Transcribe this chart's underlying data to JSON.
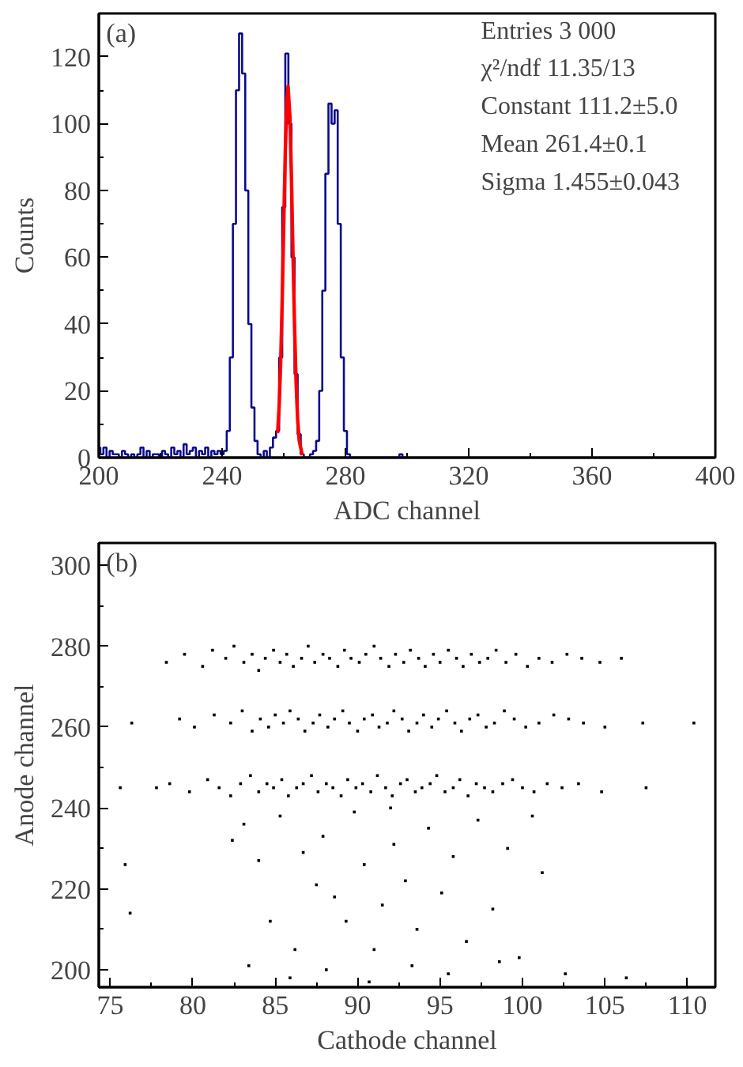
{
  "chart_data": [
    {
      "type": "step",
      "xlabel": "ADC channel",
      "ylabel": "Counts",
      "xlim": [
        200,
        400
      ],
      "ylim": [
        0,
        133
      ],
      "xticks": [
        200,
        240,
        280,
        320,
        360,
        400
      ],
      "yticks": [
        0,
        20,
        40,
        60,
        80,
        100,
        120
      ],
      "grid": false,
      "annotations": [
        "(a)",
        "Entries 3 000",
        "χ²/ndf 11.35/13",
        "Constant 111.2±5.0",
        "Mean 261.4±0.1",
        "Sigma 1.455±0.043"
      ],
      "series": [
        {
          "color": "#0a0a8c",
          "x": [
            200,
            201,
            202,
            203,
            204,
            205,
            206,
            207,
            208,
            209,
            210,
            211,
            212,
            213,
            214,
            215,
            216,
            217,
            218,
            219,
            220,
            221,
            222,
            223,
            224,
            225,
            226,
            227,
            228,
            229,
            230,
            231,
            232,
            233,
            234,
            235,
            236,
            237,
            238,
            239,
            240,
            241,
            242,
            243,
            244,
            245,
            246,
            247,
            248,
            249,
            250,
            251,
            252,
            253,
            254,
            255,
            256,
            257,
            258,
            259,
            260,
            261,
            262,
            263,
            264,
            265,
            266,
            267,
            268,
            269,
            270,
            271,
            272,
            273,
            274,
            275,
            276,
            277,
            278,
            279,
            280,
            281,
            282,
            283,
            284,
            285,
            286,
            287,
            288,
            289,
            290,
            291,
            292,
            293,
            294,
            295,
            296,
            297,
            298,
            299,
            300
          ],
          "values": [
            3,
            1,
            3,
            0,
            2,
            1,
            1,
            0,
            2,
            1,
            0,
            1,
            0,
            1,
            3,
            0,
            2,
            0,
            1,
            1,
            0,
            2,
            1,
            0,
            3,
            1,
            2,
            0,
            4,
            1,
            2,
            3,
            0,
            2,
            1,
            3,
            0,
            2,
            1,
            2,
            1,
            2,
            8,
            30,
            70,
            110,
            127,
            115,
            80,
            40,
            15,
            5,
            1,
            0,
            2,
            0,
            3,
            6,
            8,
            30,
            75,
            121,
            100,
            60,
            25,
            7,
            1,
            0,
            0,
            1,
            2,
            5,
            20,
            50,
            85,
            106,
            100,
            104,
            70,
            30,
            8,
            1,
            0,
            0,
            0,
            0,
            0,
            0,
            0,
            0,
            0,
            0,
            0,
            0,
            0,
            0,
            0,
            0,
            1,
            0,
            0
          ]
        },
        {
          "type": "line",
          "color": "#ff0000",
          "x": [
            258,
            258.5,
            259,
            259.5,
            260,
            260.5,
            261,
            261.4,
            262,
            262.5,
            263,
            263.5,
            264,
            264.5,
            265,
            266
          ],
          "values": [
            7.3,
            15.3,
            28.5,
            47.4,
            70.0,
            91.8,
            107.1,
            111.2,
            102.1,
            83.5,
            60.7,
            39.3,
            22.5,
            11.5,
            5.2,
            0.7
          ]
        }
      ]
    },
    {
      "type": "scatter",
      "xlabel": "Cathode channel",
      "ylabel": "Anode channel",
      "xlim": [
        74.3,
        111.7
      ],
      "ylim": [
        195.7,
        305.5
      ],
      "xticks": [
        75,
        80,
        85,
        90,
        95,
        100,
        105,
        110
      ],
      "yticks": [
        200,
        220,
        240,
        260,
        280,
        300
      ],
      "grid": false,
      "marker": "square",
      "annotations": [
        "(b)"
      ],
      "series": [
        {
          "color": "#000000",
          "x": [
            78.4,
            79.5,
            80.6,
            81.2,
            82.0,
            82.5,
            83.1,
            83.6,
            84.0,
            84.4,
            84.9,
            85.3,
            85.7,
            86.1,
            86.6,
            87.0,
            87.4,
            87.9,
            88.3,
            88.8,
            89.2,
            89.6,
            90.1,
            90.5,
            91.0,
            91.4,
            91.9,
            92.3,
            92.8,
            93.2,
            93.7,
            94.1,
            94.6,
            95.0,
            95.5,
            96.0,
            96.4,
            96.9,
            97.4,
            97.9,
            98.4,
            99.0,
            99.6,
            100.3,
            101.0,
            101.8,
            102.7,
            103.6,
            104.7,
            106.0,
            76.3,
            79.2,
            80.1,
            81.3,
            82.3,
            83.0,
            83.6,
            84.1,
            84.6,
            85.0,
            85.5,
            85.9,
            86.4,
            86.8,
            87.3,
            87.7,
            88.2,
            88.6,
            89.1,
            89.5,
            90.0,
            90.4,
            90.9,
            91.3,
            91.8,
            92.2,
            92.7,
            93.1,
            93.6,
            94.0,
            94.5,
            94.9,
            95.4,
            95.9,
            96.3,
            96.8,
            97.3,
            97.8,
            98.3,
            98.9,
            99.5,
            100.2,
            101.0,
            101.9,
            102.8,
            103.7,
            105.0,
            107.3,
            110.4,
            75.6,
            77.8,
            78.6,
            79.8,
            80.9,
            81.6,
            82.3,
            82.9,
            83.5,
            84.0,
            84.5,
            84.9,
            85.4,
            85.8,
            86.3,
            86.7,
            87.2,
            87.6,
            88.1,
            88.5,
            89.0,
            89.4,
            89.9,
            90.3,
            90.8,
            91.2,
            91.7,
            92.1,
            92.6,
            93.0,
            93.5,
            93.9,
            94.4,
            94.8,
            95.3,
            95.8,
            96.2,
            96.7,
            97.2,
            97.7,
            98.2,
            98.8,
            99.4,
            100.0,
            100.7,
            101.5,
            102.4,
            103.4,
            104.8,
            107.5,
            75.9,
            76.2,
            82.4,
            83.1,
            84.0,
            85.3,
            86.7,
            87.5,
            87.9,
            88.6,
            89.3,
            89.8,
            90.4,
            91.0,
            91.5,
            92.2,
            92.9,
            93.6,
            94.3,
            95.1,
            95.8,
            96.6,
            97.3,
            98.2,
            99.1,
            99.8,
            101.2,
            83.4,
            85.9,
            88.1,
            90.7,
            93.3,
            95.5,
            98.6,
            102.6,
            106.3,
            84.7,
            86.2,
            92.0,
            100.6
          ],
          "values": [
            276,
            278,
            275,
            279,
            277,
            280,
            276,
            278,
            274,
            277,
            279,
            276,
            278,
            275,
            277,
            280,
            276,
            278,
            277,
            275,
            279,
            277,
            276,
            278,
            280,
            277,
            275,
            278,
            276,
            279,
            277,
            275,
            278,
            276,
            279,
            277,
            275,
            278,
            276,
            277,
            279,
            276,
            278,
            275,
            277,
            276,
            278,
            277,
            276,
            277,
            261,
            262,
            260,
            263,
            261,
            264,
            259,
            262,
            260,
            263,
            261,
            264,
            262,
            259,
            261,
            263,
            260,
            262,
            264,
            261,
            259,
            262,
            263,
            260,
            261,
            264,
            262,
            259,
            261,
            263,
            260,
            262,
            264,
            261,
            259,
            262,
            263,
            260,
            261,
            264,
            262,
            260,
            261,
            263,
            262,
            261,
            260,
            261,
            261,
            245,
            245,
            246,
            244,
            247,
            245,
            243,
            246,
            248,
            244,
            246,
            245,
            247,
            243,
            245,
            246,
            248,
            244,
            246,
            245,
            243,
            247,
            245,
            246,
            244,
            248,
            245,
            243,
            246,
            247,
            244,
            245,
            246,
            248,
            244,
            245,
            247,
            243,
            246,
            245,
            244,
            246,
            247,
            245,
            244,
            246,
            245,
            246,
            244,
            245,
            226,
            214,
            232,
            236,
            227,
            238,
            229,
            221,
            233,
            218,
            212,
            239,
            226,
            205,
            216,
            231,
            222,
            210,
            235,
            219,
            228,
            207,
            237,
            215,
            230,
            203,
            224,
            201,
            198,
            200,
            197,
            201,
            199,
            202,
            199,
            198,
            212,
            205,
            240,
            238
          ]
        }
      ]
    }
  ]
}
